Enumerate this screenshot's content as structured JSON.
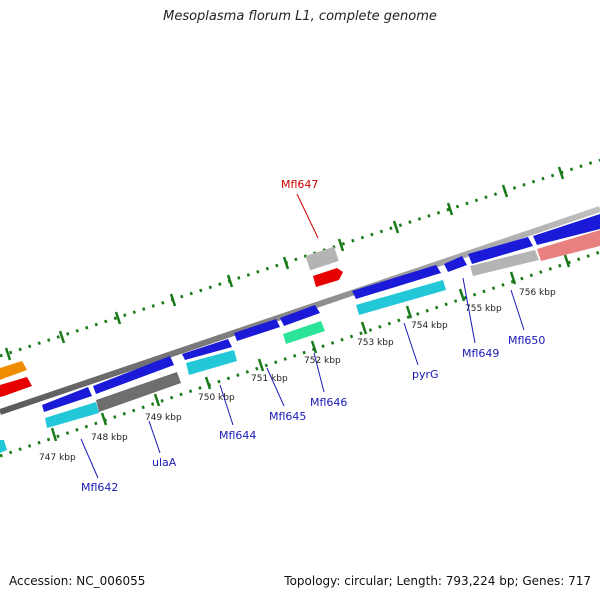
{
  "title": "Mesoplasma florum L1, complete genome",
  "footer": {
    "accession": "Accession: NC_006055",
    "summary": "Topology: circular; Length: 793,224 bp; Genes: 717"
  },
  "ticks": [
    "747 kbp",
    "748 kbp",
    "749 kbp",
    "750 kbp",
    "751 kbp",
    "752 kbp",
    "753 kbp",
    "754 kbp",
    "755 kbp",
    "756 kbp"
  ],
  "gene_labels": [
    "Mfl642",
    "ulaA",
    "Mfl644",
    "Mfl645",
    "Mfl646",
    "pyrG",
    "Mfl649",
    "Mfl650",
    "Mfl647"
  ],
  "colors": {
    "cds_blue": "#1a1ad8",
    "cyan": "#22c8d8",
    "gray": "#6e6e6e",
    "light_gray": "#b4b4b4",
    "red": "#e60000",
    "orange": "#f08c00",
    "pink": "#e88080",
    "mint": "#2be49a",
    "tick_green": "#1a7a1a",
    "label_blue": "#1a1ab4",
    "label_red": "#cc0000"
  }
}
